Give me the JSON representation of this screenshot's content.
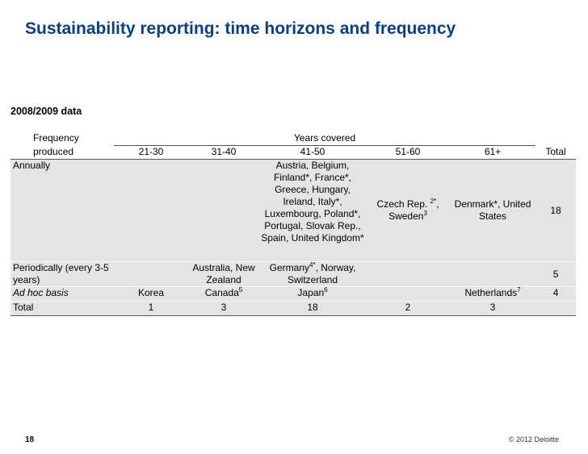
{
  "slide": {
    "title": "Sustainability reporting: time horizons and frequency",
    "data_label": "2008/2009 data",
    "page_number": "18",
    "copyright": "© 2012 Deloitte"
  },
  "table": {
    "freq_header_line1": "Frequency",
    "freq_header_line2": "produced",
    "years_header": "Years covered",
    "columns": [
      "21-30",
      "31-40",
      "41-50",
      "51-60",
      "61+",
      "Total"
    ],
    "rows": {
      "annually": {
        "label": "Annually",
        "c41_50": "Austria, Belgium, Finland*, France*, Greece, Hungary, Ireland, Italy*, Luxembourg, Poland*, Portugal, Slovak Rep., Spain, United Kingdom*",
        "c51_60_a": "Czech Rep. ",
        "c51_60_sup1": "2*",
        "c51_60_b": ", Sweden",
        "c51_60_sup2": "3",
        "c61": "Denmark*, United States",
        "total": "18"
      },
      "periodically": {
        "label": "Periodically (every 3-5 years)",
        "c31_40": "Australia, New Zealand",
        "c41_50_a": "Germany",
        "c41_50_sup": "4*",
        "c41_50_b": ", Norway, Switzerland",
        "total": "5"
      },
      "adhoc": {
        "label": "Ad hoc basis",
        "c21_30": "Korea",
        "c31_40": "Canada",
        "c31_40_sup": "5",
        "c41_50": "Japan",
        "c41_50_sup": "6",
        "c61": "Netherlands",
        "c61_sup": "7",
        "total": "4"
      },
      "total": {
        "label": "Total",
        "c21_30": "1",
        "c31_40": "3",
        "c41_50": "18",
        "c51_60": "2",
        "c61": "3"
      }
    }
  }
}
